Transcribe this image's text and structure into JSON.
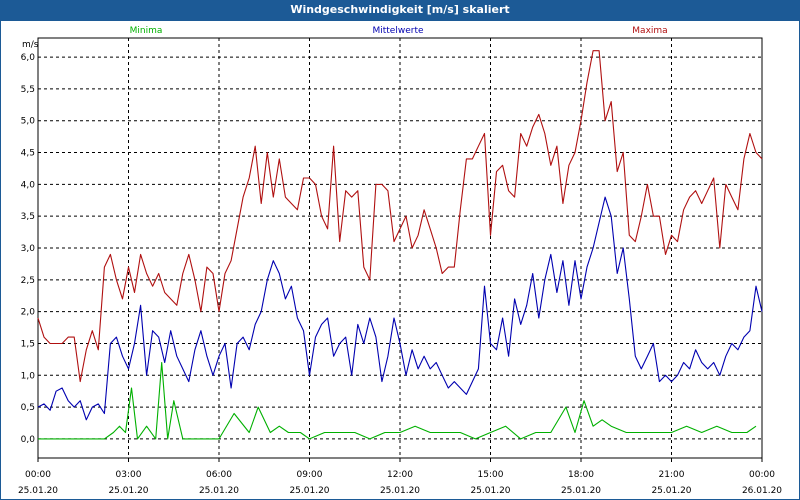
{
  "window": {
    "title": "Windgeschwindigkeit [m/s] skaliert"
  },
  "chart_data": {
    "type": "line",
    "title": "Windgeschwindigkeit [m/s] skaliert",
    "ylabel": "m/s",
    "ylim": [
      -0.3,
      6.3
    ],
    "xlim": [
      0,
      24
    ],
    "yticks": [
      "0,0",
      "0,5",
      "1,0",
      "1,5",
      "2,0",
      "2,5",
      "3,0",
      "3,5",
      "4,0",
      "4,5",
      "5,0",
      "5,5",
      "6,0"
    ],
    "yticks_values": [
      0,
      0.5,
      1,
      1.5,
      2,
      2.5,
      3,
      3.5,
      4,
      4.5,
      5,
      5.5,
      6
    ],
    "xticks": [
      {
        "time": "00:00",
        "date": "25.01.20"
      },
      {
        "time": "03:00",
        "date": "25.01.20"
      },
      {
        "time": "06:00",
        "date": "25.01.20"
      },
      {
        "time": "09:00",
        "date": "25.01.20"
      },
      {
        "time": "12:00",
        "date": "25.01.20"
      },
      {
        "time": "15:00",
        "date": "25.01.20"
      },
      {
        "time": "18:00",
        "date": "25.01.20"
      },
      {
        "time": "21:00",
        "date": "25.01.20"
      },
      {
        "time": "00:00",
        "date": "26.01.20"
      }
    ],
    "xticks_hours": [
      0,
      3,
      6,
      9,
      12,
      15,
      18,
      21,
      24
    ],
    "grid": true,
    "legend_position": "top",
    "series": [
      {
        "name": "Minima",
        "color": "#00b000",
        "points": [
          [
            0,
            0
          ],
          [
            2.2,
            0
          ],
          [
            2.5,
            0.1
          ],
          [
            2.7,
            0.2
          ],
          [
            2.9,
            0.1
          ],
          [
            3.1,
            0.8
          ],
          [
            3.3,
            0
          ],
          [
            3.6,
            0.2
          ],
          [
            3.9,
            0
          ],
          [
            4.1,
            1.2
          ],
          [
            4.3,
            0
          ],
          [
            4.5,
            0.6
          ],
          [
            4.8,
            0
          ],
          [
            6,
            0
          ],
          [
            6.5,
            0.4
          ],
          [
            7,
            0.1
          ],
          [
            7.3,
            0.5
          ],
          [
            7.7,
            0.1
          ],
          [
            8,
            0.2
          ],
          [
            8.3,
            0.1
          ],
          [
            8.7,
            0.1
          ],
          [
            9,
            0
          ],
          [
            9.5,
            0.1
          ],
          [
            10.5,
            0.1
          ],
          [
            11,
            0
          ],
          [
            11.5,
            0.1
          ],
          [
            12,
            0.1
          ],
          [
            12.5,
            0.2
          ],
          [
            13,
            0.1
          ],
          [
            14,
            0.1
          ],
          [
            14.5,
            0
          ],
          [
            15,
            0.1
          ],
          [
            15.5,
            0.2
          ],
          [
            16,
            0
          ],
          [
            16.5,
            0.1
          ],
          [
            17,
            0.1
          ],
          [
            17.5,
            0.5
          ],
          [
            17.8,
            0.1
          ],
          [
            18.1,
            0.6
          ],
          [
            18.4,
            0.2
          ],
          [
            18.7,
            0.3
          ],
          [
            19,
            0.2
          ],
          [
            19.5,
            0.1
          ],
          [
            20,
            0.1
          ],
          [
            20.5,
            0.1
          ],
          [
            21,
            0.1
          ],
          [
            21.5,
            0.2
          ],
          [
            22,
            0.1
          ],
          [
            22.5,
            0.2
          ],
          [
            23,
            0.1
          ],
          [
            23.5,
            0.1
          ],
          [
            23.8,
            0.2
          ]
        ]
      },
      {
        "name": "Mittelwerte",
        "color": "#0000b0",
        "points": [
          [
            0,
            0.5
          ],
          [
            0.2,
            0.55
          ],
          [
            0.4,
            0.45
          ],
          [
            0.6,
            0.75
          ],
          [
            0.8,
            0.8
          ],
          [
            1,
            0.6
          ],
          [
            1.2,
            0.5
          ],
          [
            1.4,
            0.6
          ],
          [
            1.6,
            0.3
          ],
          [
            1.8,
            0.5
          ],
          [
            2,
            0.55
          ],
          [
            2.2,
            0.4
          ],
          [
            2.4,
            1.5
          ],
          [
            2.6,
            1.6
          ],
          [
            2.8,
            1.3
          ],
          [
            3,
            1.1
          ],
          [
            3.2,
            1.5
          ],
          [
            3.4,
            2.1
          ],
          [
            3.6,
            1.0
          ],
          [
            3.8,
            1.7
          ],
          [
            4,
            1.6
          ],
          [
            4.2,
            1.2
          ],
          [
            4.4,
            1.7
          ],
          [
            4.6,
            1.3
          ],
          [
            4.8,
            1.1
          ],
          [
            5,
            0.9
          ],
          [
            5.2,
            1.4
          ],
          [
            5.4,
            1.7
          ],
          [
            5.6,
            1.3
          ],
          [
            5.8,
            1.0
          ],
          [
            6,
            1.3
          ],
          [
            6.2,
            1.5
          ],
          [
            6.4,
            0.8
          ],
          [
            6.6,
            1.5
          ],
          [
            6.8,
            1.6
          ],
          [
            7,
            1.4
          ],
          [
            7.2,
            1.8
          ],
          [
            7.4,
            2.0
          ],
          [
            7.6,
            2.5
          ],
          [
            7.8,
            2.8
          ],
          [
            8,
            2.6
          ],
          [
            8.2,
            2.2
          ],
          [
            8.4,
            2.4
          ],
          [
            8.6,
            1.9
          ],
          [
            8.8,
            1.7
          ],
          [
            9,
            1.0
          ],
          [
            9.2,
            1.6
          ],
          [
            9.4,
            1.8
          ],
          [
            9.6,
            1.9
          ],
          [
            9.8,
            1.3
          ],
          [
            10,
            1.5
          ],
          [
            10.2,
            1.6
          ],
          [
            10.4,
            1.0
          ],
          [
            10.6,
            1.8
          ],
          [
            10.8,
            1.5
          ],
          [
            11,
            1.9
          ],
          [
            11.2,
            1.6
          ],
          [
            11.4,
            0.9
          ],
          [
            11.6,
            1.3
          ],
          [
            11.8,
            1.9
          ],
          [
            12,
            1.5
          ],
          [
            12.2,
            1.0
          ],
          [
            12.4,
            1.4
          ],
          [
            12.6,
            1.1
          ],
          [
            12.8,
            1.3
          ],
          [
            13,
            1.1
          ],
          [
            13.2,
            1.2
          ],
          [
            13.4,
            1.0
          ],
          [
            13.6,
            0.8
          ],
          [
            13.8,
            0.9
          ],
          [
            14,
            0.8
          ],
          [
            14.2,
            0.7
          ],
          [
            14.4,
            0.9
          ],
          [
            14.6,
            1.1
          ],
          [
            14.8,
            2.4
          ],
          [
            15,
            1.5
          ],
          [
            15.2,
            1.4
          ],
          [
            15.4,
            1.9
          ],
          [
            15.6,
            1.3
          ],
          [
            15.8,
            2.2
          ],
          [
            16,
            1.8
          ],
          [
            16.2,
            2.1
          ],
          [
            16.4,
            2.6
          ],
          [
            16.6,
            1.9
          ],
          [
            16.8,
            2.5
          ],
          [
            17,
            2.9
          ],
          [
            17.2,
            2.3
          ],
          [
            17.4,
            2.8
          ],
          [
            17.6,
            2.1
          ],
          [
            17.8,
            2.8
          ],
          [
            18,
            2.2
          ],
          [
            18.2,
            2.7
          ],
          [
            18.4,
            3.0
          ],
          [
            18.6,
            3.4
          ],
          [
            18.8,
            3.8
          ],
          [
            19,
            3.5
          ],
          [
            19.2,
            2.6
          ],
          [
            19.4,
            3.0
          ],
          [
            19.6,
            2.2
          ],
          [
            19.8,
            1.3
          ],
          [
            20,
            1.1
          ],
          [
            20.2,
            1.3
          ],
          [
            20.4,
            1.5
          ],
          [
            20.6,
            0.9
          ],
          [
            20.8,
            1.0
          ],
          [
            21,
            0.9
          ],
          [
            21.2,
            1.0
          ],
          [
            21.4,
            1.2
          ],
          [
            21.6,
            1.1
          ],
          [
            21.8,
            1.4
          ],
          [
            22,
            1.2
          ],
          [
            22.2,
            1.1
          ],
          [
            22.4,
            1.2
          ],
          [
            22.6,
            1.0
          ],
          [
            22.8,
            1.3
          ],
          [
            23,
            1.5
          ],
          [
            23.2,
            1.4
          ],
          [
            23.4,
            1.6
          ],
          [
            23.6,
            1.7
          ],
          [
            23.8,
            2.4
          ],
          [
            24,
            2.0
          ]
        ]
      },
      {
        "name": "Maxima",
        "color": "#b01010",
        "points": [
          [
            0,
            1.9
          ],
          [
            0.2,
            1.6
          ],
          [
            0.4,
            1.5
          ],
          [
            0.6,
            1.5
          ],
          [
            0.8,
            1.5
          ],
          [
            1,
            1.6
          ],
          [
            1.2,
            1.6
          ],
          [
            1.4,
            0.9
          ],
          [
            1.6,
            1.4
          ],
          [
            1.8,
            1.7
          ],
          [
            2,
            1.4
          ],
          [
            2.2,
            2.7
          ],
          [
            2.4,
            2.9
          ],
          [
            2.6,
            2.5
          ],
          [
            2.8,
            2.2
          ],
          [
            3,
            2.7
          ],
          [
            3.2,
            2.3
          ],
          [
            3.4,
            2.9
          ],
          [
            3.6,
            2.6
          ],
          [
            3.8,
            2.4
          ],
          [
            4,
            2.6
          ],
          [
            4.2,
            2.3
          ],
          [
            4.4,
            2.2
          ],
          [
            4.6,
            2.1
          ],
          [
            4.8,
            2.6
          ],
          [
            5,
            2.9
          ],
          [
            5.2,
            2.5
          ],
          [
            5.4,
            2.0
          ],
          [
            5.6,
            2.7
          ],
          [
            5.8,
            2.6
          ],
          [
            6,
            2.0
          ],
          [
            6.2,
            2.6
          ],
          [
            6.4,
            2.8
          ],
          [
            6.6,
            3.3
          ],
          [
            6.8,
            3.8
          ],
          [
            7,
            4.1
          ],
          [
            7.2,
            4.6
          ],
          [
            7.4,
            3.7
          ],
          [
            7.6,
            4.5
          ],
          [
            7.8,
            3.8
          ],
          [
            8,
            4.4
          ],
          [
            8.2,
            3.8
          ],
          [
            8.4,
            3.7
          ],
          [
            8.6,
            3.6
          ],
          [
            8.8,
            4.1
          ],
          [
            9,
            4.1
          ],
          [
            9.2,
            4.0
          ],
          [
            9.4,
            3.5
          ],
          [
            9.6,
            3.3
          ],
          [
            9.8,
            4.6
          ],
          [
            10,
            3.1
          ],
          [
            10.2,
            3.9
          ],
          [
            10.4,
            3.8
          ],
          [
            10.6,
            3.9
          ],
          [
            10.8,
            2.7
          ],
          [
            11,
            2.5
          ],
          [
            11.2,
            4.0
          ],
          [
            11.4,
            4.0
          ],
          [
            11.6,
            3.9
          ],
          [
            11.8,
            3.1
          ],
          [
            12,
            3.3
          ],
          [
            12.2,
            3.5
          ],
          [
            12.4,
            3.0
          ],
          [
            12.6,
            3.2
          ],
          [
            12.8,
            3.6
          ],
          [
            13,
            3.3
          ],
          [
            13.2,
            3.0
          ],
          [
            13.4,
            2.6
          ],
          [
            13.6,
            2.7
          ],
          [
            13.8,
            2.7
          ],
          [
            14,
            3.6
          ],
          [
            14.2,
            4.4
          ],
          [
            14.4,
            4.4
          ],
          [
            14.6,
            4.6
          ],
          [
            14.8,
            4.8
          ],
          [
            15,
            3.2
          ],
          [
            15.2,
            4.2
          ],
          [
            15.4,
            4.3
          ],
          [
            15.6,
            3.9
          ],
          [
            15.8,
            3.8
          ],
          [
            16,
            4.8
          ],
          [
            16.2,
            4.6
          ],
          [
            16.4,
            4.9
          ],
          [
            16.6,
            5.1
          ],
          [
            16.8,
            4.8
          ],
          [
            17,
            4.3
          ],
          [
            17.2,
            4.6
          ],
          [
            17.4,
            3.7
          ],
          [
            17.6,
            4.3
          ],
          [
            17.8,
            4.5
          ],
          [
            18,
            5.0
          ],
          [
            18.2,
            5.6
          ],
          [
            18.4,
            6.1
          ],
          [
            18.6,
            6.1
          ],
          [
            18.8,
            5.0
          ],
          [
            19,
            5.3
          ],
          [
            19.2,
            4.2
          ],
          [
            19.4,
            4.5
          ],
          [
            19.6,
            3.2
          ],
          [
            19.8,
            3.1
          ],
          [
            20,
            3.5
          ],
          [
            20.2,
            4.0
          ],
          [
            20.4,
            3.5
          ],
          [
            20.6,
            3.5
          ],
          [
            20.8,
            2.9
          ],
          [
            21,
            3.2
          ],
          [
            21.2,
            3.1
          ],
          [
            21.4,
            3.6
          ],
          [
            21.6,
            3.8
          ],
          [
            21.8,
            3.9
          ],
          [
            22,
            3.7
          ],
          [
            22.2,
            3.9
          ],
          [
            22.4,
            4.1
          ],
          [
            22.6,
            3.0
          ],
          [
            22.8,
            4.0
          ],
          [
            23,
            3.8
          ],
          [
            23.2,
            3.6
          ],
          [
            23.4,
            4.4
          ],
          [
            23.6,
            4.8
          ],
          [
            23.8,
            4.5
          ],
          [
            24,
            4.4
          ]
        ]
      }
    ]
  }
}
